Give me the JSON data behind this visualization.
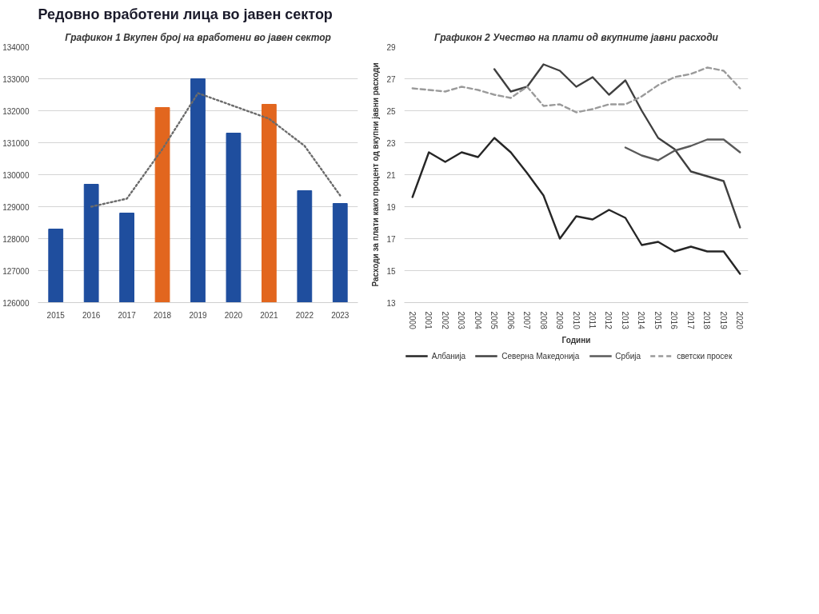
{
  "chart_data": [
    {
      "type": "bar",
      "title": "Графикон 1 Вкупен број на вработени во јавен сектор",
      "annotations": [
        "Редовно вработени лица во јавен сектор"
      ],
      "categories": [
        "2015",
        "2016",
        "2017",
        "2018",
        "2019",
        "2020",
        "2021",
        "2022",
        "2023"
      ],
      "series": [
        {
          "type": "bar",
          "colors": [
            "#1f4e9e",
            "#1f4e9e",
            "#1f4e9e",
            "#e2661e",
            "#1f4e9e",
            "#1f4e9e",
            "#e2661e",
            "#1f4e9e",
            "#1f4e9e"
          ],
          "values": [
            128300,
            129700,
            128800,
            132100,
            133000,
            131300,
            132200,
            129500,
            129100
          ]
        },
        {
          "type": "line",
          "color": "#6b6b6b",
          "line_style": "dotted",
          "values": [
            null,
            129000,
            129250,
            130800,
            132550,
            132150,
            131750,
            130900,
            129350
          ]
        }
      ],
      "ylim": [
        126000,
        134000
      ],
      "yticks": [
        126000,
        127000,
        128000,
        129000,
        130000,
        131000,
        132000,
        133000,
        134000
      ],
      "grid": "y"
    },
    {
      "type": "line",
      "title": "Графикон 2 Учество на плати од вкупните јавни расходи",
      "xlabel": "Години",
      "ylabel": "Расходи за плати како процент од вкупни јавни расходи",
      "categories": [
        "2000",
        "2001",
        "2002",
        "2003",
        "2004",
        "2005",
        "2006",
        "2007",
        "2008",
        "2009",
        "2010",
        "2011",
        "2012",
        "2013",
        "2014",
        "2015",
        "2016",
        "2017",
        "2018",
        "2019",
        "2020"
      ],
      "series": [
        {
          "name": "Албанија",
          "color": "#262626",
          "values": [
            19.6,
            22.4,
            21.8,
            22.4,
            22.1,
            23.3,
            22.4,
            21.1,
            19.7,
            17.0,
            18.4,
            18.2,
            18.8,
            18.3,
            16.6,
            16.8,
            16.2,
            16.5,
            16.2,
            16.2,
            14.8
          ]
        },
        {
          "name": "Северна Македонија",
          "color": "#404040",
          "values": [
            null,
            null,
            null,
            null,
            null,
            27.6,
            26.2,
            26.5,
            27.9,
            27.5,
            26.5,
            27.1,
            26.0,
            26.9,
            25.0,
            23.3,
            22.6,
            21.2,
            20.9,
            20.6,
            17.7
          ]
        },
        {
          "name": "Србија",
          "color": "#5a5a5a",
          "values": [
            null,
            null,
            null,
            null,
            null,
            null,
            null,
            null,
            null,
            null,
            null,
            null,
            null,
            22.7,
            22.2,
            21.9,
            22.5,
            22.8,
            23.2,
            23.2,
            22.4
          ]
        },
        {
          "name": "светски просек",
          "color": "#9a9a9a",
          "line_style": "dashed",
          "values": [
            26.4,
            26.3,
            26.2,
            26.5,
            26.3,
            26.0,
            25.8,
            26.5,
            25.3,
            25.4,
            24.9,
            25.1,
            25.4,
            25.4,
            25.9,
            26.6,
            27.1,
            27.3,
            27.7,
            27.5,
            26.4
          ]
        }
      ],
      "ylim": [
        13,
        29
      ],
      "yticks": [
        13,
        15,
        17,
        19,
        21,
        23,
        25,
        27,
        29
      ],
      "grid": "y",
      "legend": "bottom"
    }
  ]
}
